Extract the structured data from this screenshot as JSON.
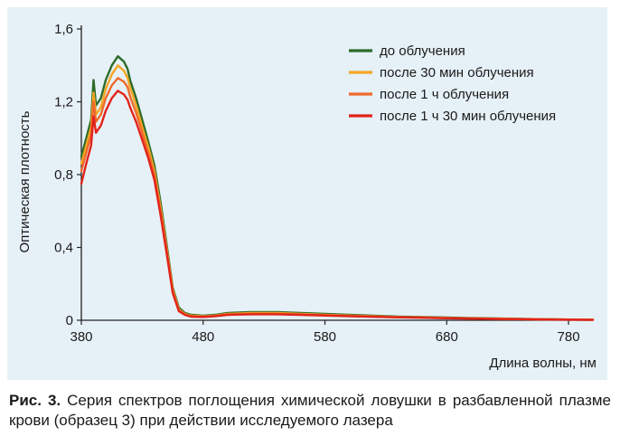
{
  "chart_data": {
    "type": "line",
    "xlabel": "Длина волны, нм",
    "ylabel": "Оптическая плотность",
    "xlim": [
      380,
      800
    ],
    "ylim": [
      0,
      1.6
    ],
    "x_ticks": [
      380,
      480,
      580,
      680,
      780
    ],
    "x_tick_labels": [
      "380",
      "480",
      "580",
      "680",
      "780"
    ],
    "y_ticks": [
      0,
      0.4,
      0.8,
      1.2,
      1.6
    ],
    "y_tick_labels": [
      "0",
      "0,4",
      "0,8",
      "1,2",
      "1,6"
    ],
    "legend_position": "top-right",
    "x": [
      380,
      384,
      388,
      390,
      392,
      396,
      400,
      405,
      410,
      415,
      418,
      420,
      425,
      430,
      435,
      440,
      445,
      450,
      455,
      460,
      465,
      470,
      480,
      490,
      500,
      520,
      540,
      560,
      580,
      600,
      620,
      640,
      660,
      680,
      700,
      720,
      740,
      760,
      780,
      800
    ],
    "series": [
      {
        "name": "до облучения",
        "color": "#2e6b2a",
        "values": [
          0.9,
          1.0,
          1.1,
          1.32,
          1.18,
          1.22,
          1.32,
          1.4,
          1.45,
          1.42,
          1.38,
          1.32,
          1.22,
          1.1,
          0.98,
          0.85,
          0.65,
          0.42,
          0.18,
          0.07,
          0.04,
          0.03,
          0.025,
          0.03,
          0.04,
          0.045,
          0.045,
          0.04,
          0.035,
          0.03,
          0.025,
          0.02,
          0.018,
          0.015,
          0.012,
          0.01,
          0.008,
          0.006,
          0.004,
          0.003
        ]
      },
      {
        "name": "после 30 мин облучения",
        "color": "#f5a623",
        "values": [
          0.86,
          0.96,
          1.06,
          1.25,
          1.13,
          1.17,
          1.27,
          1.35,
          1.4,
          1.37,
          1.33,
          1.28,
          1.18,
          1.06,
          0.95,
          0.82,
          0.62,
          0.4,
          0.17,
          0.06,
          0.035,
          0.025,
          0.022,
          0.026,
          0.035,
          0.04,
          0.04,
          0.035,
          0.03,
          0.026,
          0.022,
          0.018,
          0.016,
          0.013,
          0.01,
          0.009,
          0.007,
          0.005,
          0.004,
          0.003
        ]
      },
      {
        "name": "после 1 ч облучения",
        "color": "#ef6a2a",
        "values": [
          0.82,
          0.92,
          1.02,
          1.2,
          1.09,
          1.13,
          1.22,
          1.29,
          1.33,
          1.31,
          1.28,
          1.23,
          1.14,
          1.03,
          0.92,
          0.8,
          0.6,
          0.39,
          0.16,
          0.055,
          0.032,
          0.022,
          0.02,
          0.024,
          0.032,
          0.036,
          0.036,
          0.032,
          0.028,
          0.024,
          0.02,
          0.017,
          0.015,
          0.012,
          0.01,
          0.008,
          0.006,
          0.005,
          0.004,
          0.003
        ]
      },
      {
        "name": "после 1 ч 30 мин облучения",
        "color": "#e2231a",
        "values": [
          0.75,
          0.86,
          0.96,
          1.12,
          1.03,
          1.07,
          1.15,
          1.22,
          1.26,
          1.24,
          1.21,
          1.17,
          1.09,
          0.99,
          0.89,
          0.77,
          0.58,
          0.37,
          0.15,
          0.05,
          0.03,
          0.02,
          0.018,
          0.022,
          0.03,
          0.033,
          0.033,
          0.03,
          0.026,
          0.022,
          0.019,
          0.016,
          0.014,
          0.011,
          0.009,
          0.007,
          0.006,
          0.004,
          0.003,
          0.002
        ]
      }
    ]
  },
  "caption": {
    "label": "Рис. 3.",
    "text": " Серия спектров поглощения химической ловушки в разбавленной плазме крови (образец 3) при действии исследуемого лазера"
  }
}
